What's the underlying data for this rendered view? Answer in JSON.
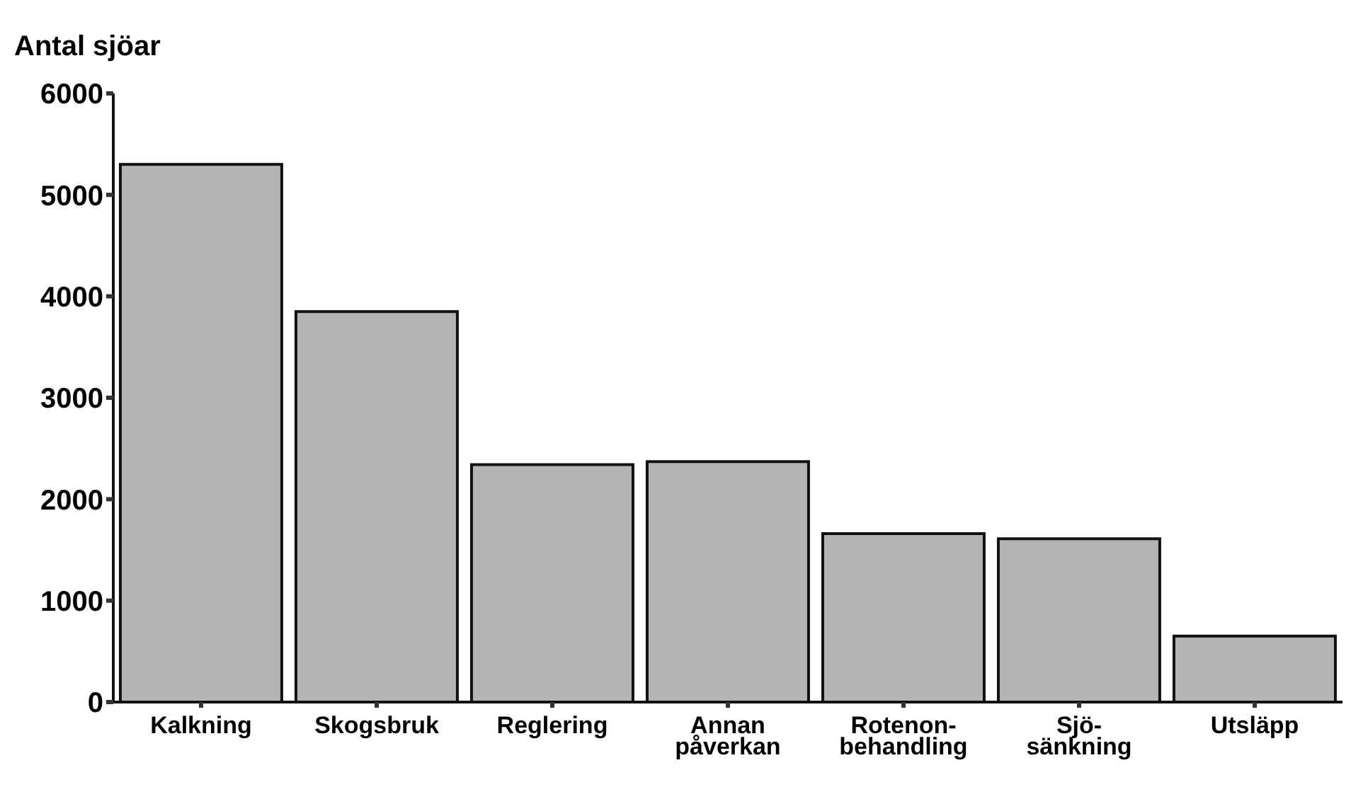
{
  "chart_data": {
    "type": "bar",
    "ylabel": "Antal sjöar",
    "categories": [
      "Kalkning",
      "Skogsbruk",
      "Reglering",
      "Annan\npåverkan",
      "Rotenon-\nbehandling",
      "Sjö-\nsänkning",
      "Utsläpp"
    ],
    "values": [
      5300,
      3850,
      2340,
      2370,
      1660,
      1610,
      650
    ],
    "color": "#b4b4b4",
    "ylim": [
      0,
      6000
    ],
    "yticks": [
      0,
      1000,
      2000,
      3000,
      4000,
      5000,
      6000
    ],
    "grid": false,
    "legend": false
  }
}
